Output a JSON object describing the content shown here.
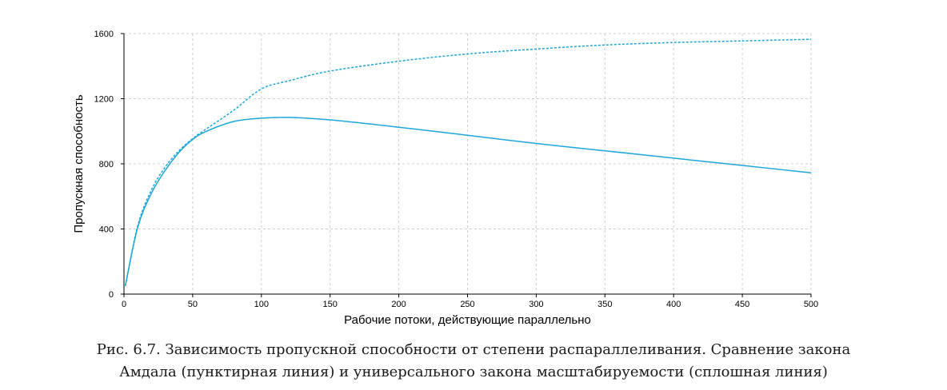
{
  "chart_data": {
    "type": "line",
    "xlabel": "Рабочие потоки, действующие параллельно",
    "ylabel": "Пропускная способность",
    "xlim": [
      0,
      500
    ],
    "ylim": [
      0,
      1600
    ],
    "x_ticks": [
      0,
      50,
      100,
      150,
      200,
      250,
      300,
      350,
      400,
      450,
      500
    ],
    "y_ticks": [
      0,
      400,
      800,
      1200,
      1600
    ],
    "grid": true,
    "series": [
      {
        "style": "dashed",
        "color": "#1ea6d8",
        "x": [
          1,
          10,
          20,
          30,
          40,
          50,
          60,
          80,
          100,
          120,
          150,
          200,
          250,
          300,
          350,
          400,
          450,
          500
        ],
        "y": [
          50,
          420,
          640,
          780,
          880,
          955,
          1015,
          1130,
          1260,
          1310,
          1370,
          1430,
          1475,
          1505,
          1530,
          1545,
          1555,
          1565
        ]
      },
      {
        "style": "solid",
        "color": "#1ea6d8",
        "x": [
          1,
          10,
          20,
          30,
          40,
          50,
          60,
          80,
          100,
          120,
          150,
          200,
          250,
          300,
          350,
          400,
          450,
          500
        ],
        "y": [
          50,
          410,
          620,
          760,
          870,
          950,
          1000,
          1060,
          1080,
          1085,
          1070,
          1025,
          975,
          925,
          880,
          835,
          790,
          745
        ]
      }
    ]
  },
  "caption": {
    "line1": "Рис. 6.7. Зависимость пропускной способности от степени распараллеливания. Сравнение закона",
    "line2": "Амдала (пунктирная линия) и универсального закона масштабируемости (сплошная линия)"
  }
}
